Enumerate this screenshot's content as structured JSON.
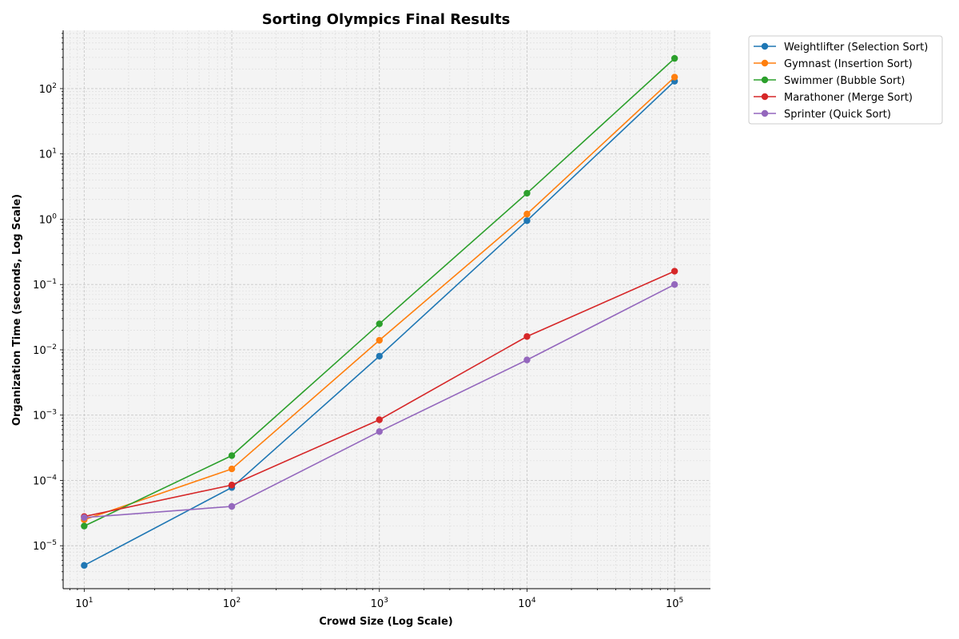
{
  "chart_data": {
    "type": "line",
    "title": "Sorting Olympics Final Results",
    "xlabel": "Crowd Size (Log Scale)",
    "ylabel": "Organization Time (seconds, Log Scale)",
    "x_scale": "log",
    "y_scale": "log",
    "x": [
      10,
      100,
      1000,
      10000,
      100000
    ],
    "xlim": [
      7.2,
      175000
    ],
    "ylim": [
      2.2e-06,
      780
    ],
    "x_tick_labels": [
      {
        "base": "10",
        "exp": "1"
      },
      {
        "base": "10",
        "exp": "2"
      },
      {
        "base": "10",
        "exp": "3"
      },
      {
        "base": "10",
        "exp": "4"
      },
      {
        "base": "10",
        "exp": "5"
      }
    ],
    "y_tick_labels": [
      {
        "base": "10",
        "exp": "−5"
      },
      {
        "base": "10",
        "exp": "−4"
      },
      {
        "base": "10",
        "exp": "−3"
      },
      {
        "base": "10",
        "exp": "−2"
      },
      {
        "base": "10",
        "exp": "−1"
      },
      {
        "base": "10",
        "exp": "0"
      },
      {
        "base": "10",
        "exp": "1"
      },
      {
        "base": "10",
        "exp": "2"
      }
    ],
    "grid": true,
    "legend_position": "outside-top-right",
    "series": [
      {
        "name": "Weightlifter (Selection Sort)",
        "color": "#1f77b4",
        "values": [
          5e-06,
          7.8e-05,
          0.008,
          0.95,
          130
        ]
      },
      {
        "name": "Gymnast (Insertion Sort)",
        "color": "#ff7f0e",
        "values": [
          2.5e-05,
          0.00015,
          0.014,
          1.2,
          150
        ]
      },
      {
        "name": "Swimmer (Bubble Sort)",
        "color": "#2ca02c",
        "values": [
          2e-05,
          0.00024,
          0.025,
          2.5,
          290
        ]
      },
      {
        "name": "Marathoner (Merge Sort)",
        "color": "#d62728",
        "values": [
          2.8e-05,
          8.5e-05,
          0.00085,
          0.016,
          0.16
        ]
      },
      {
        "name": "Sprinter (Quick Sort)",
        "color": "#9467bd",
        "values": [
          2.7e-05,
          4e-05,
          0.00056,
          0.007,
          0.1
        ]
      }
    ]
  }
}
